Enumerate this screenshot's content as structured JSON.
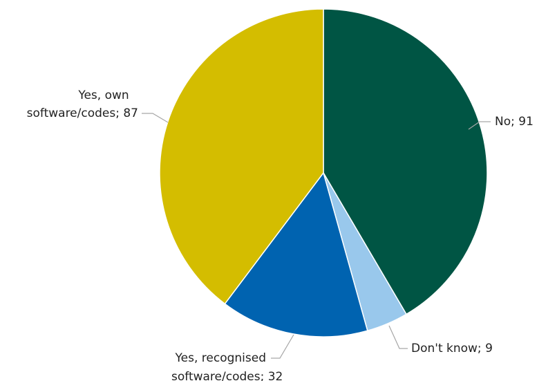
{
  "chart_data": {
    "type": "pie",
    "title": "",
    "slices": [
      {
        "label": "No",
        "value": 91,
        "color": "#005544",
        "label_lines": [
          "No; 91"
        ]
      },
      {
        "label": "Don't know",
        "value": 9,
        "color": "#99c8ec",
        "label_lines": [
          "Don't know; 9"
        ]
      },
      {
        "label": "Yes, recognised software/codes",
        "value": 32,
        "color": "#0063b0",
        "label_lines": [
          "Yes, recognised",
          "software/codes; 32"
        ]
      },
      {
        "label": "Yes, own software/codes",
        "value": 87,
        "color": "#d4bd00",
        "label_lines": [
          "Yes, own",
          "software/codes; 87"
        ]
      }
    ],
    "start_angle_deg": 0,
    "direction": "clockwise",
    "legend": "none",
    "label_placement": "outside with leader lines"
  }
}
